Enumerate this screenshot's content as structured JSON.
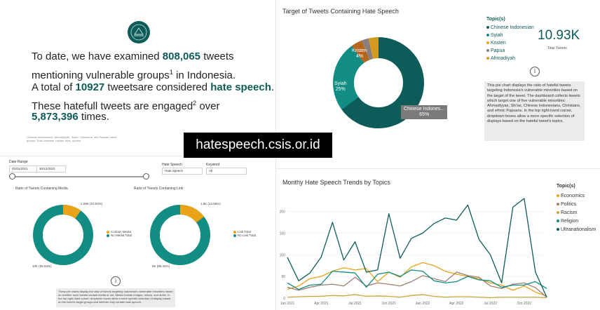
{
  "intro": {
    "line1_pre": "To date, we have examined ",
    "line1_num": "808,065",
    "line1_post": " tweets",
    "line2_pre": "mentioning vulnerable groups",
    "line2_sup": "1",
    "line2_post": " in Indonesia.",
    "line3_pre": "A total of ",
    "line3_num": "10927",
    "line3_mid": " tweets",
    "line3_mid2": "are considered ",
    "line3_em": "hate speech",
    "line3_post": ".",
    "line4_pre": "These hatefull tweets are engaged",
    "line4_sup": "2",
    "line4_post": " over",
    "line5_num": "5,873,396",
    "line5_post": "  times.",
    "footnote": "Chinese Indonesians, Ahmadiyyah, Syiah, Christians, and Papuan ethnic groups. Total retweets, replies, favs, quotes."
  },
  "banner": {
    "text": "hatespeech.csis.or.id"
  },
  "filters": {
    "date_label": "Date Range",
    "date_from": "01/01/2021",
    "date_to": "30/12/2022",
    "hs_label": "Hate Speech",
    "hs_value": "Hate Speech",
    "kw_label": "Keyword",
    "kw_value": "All"
  },
  "media_chart": {
    "title": "Ratio of Tweets Containing Media",
    "top_label": "1.09K (10.03%)",
    "bottom_label": "10K (89.94%)",
    "legend": [
      {
        "name": "Contain Media",
        "color": "#e8a317"
      },
      {
        "name": "No Media Total",
        "color": "#118d84"
      }
    ],
    "share": 0.1003
  },
  "link_chart": {
    "title": "Ratio of Tweets Containing Link",
    "top_label": "1.5K (14.56%)",
    "bottom_label": "9K (85.44%)",
    "legend": [
      {
        "name": "Link Total",
        "color": "#e8a317"
      },
      {
        "name": "No Link Total",
        "color": "#118d84"
      }
    ],
    "share": 0.1456
  },
  "bottom_note": "These pie charts display the ratio of tweets targeting Indonesia's vulnerable minorities based on whether such tweets contain media or not. Media include images, videos, and audio. In the top right-hand corner, dropdown boxes allow a more specific selection of display based on the tweet's target groups and whether they contain hate speech.",
  "info_glyph": "i",
  "target_chart": {
    "title": "Target of Tweets Containing Hate Speech",
    "slices": [
      {
        "name": "Chinese Indonesian",
        "label": "Chinese Indones...",
        "pct_label": "65%",
        "value": 65,
        "color": "#0e5c59"
      },
      {
        "name": "Syiah",
        "label": "Syiah",
        "pct_label": "25%",
        "value": 25,
        "color": "#118d84"
      },
      {
        "name": "Kristen",
        "label": "Kristen",
        "pct_label": "4%",
        "value": 4,
        "color": "#b5651d"
      },
      {
        "name": "Papua",
        "label": "",
        "pct_label": "",
        "value": 2.5,
        "color": "#8a7f7a"
      },
      {
        "name": "Ahmadiyah",
        "label": "",
        "pct_label": "",
        "value": 3.5,
        "color": "#d49a1e"
      }
    ]
  },
  "topics": {
    "title": "Topic(s)",
    "items": [
      "Chinese Indonesian",
      "Syiah",
      "Kristen",
      "Papua",
      "Ahmadiyah"
    ]
  },
  "kpi": {
    "value": "10.93K",
    "label": "Total Tweets"
  },
  "target_desc": "This pie chart displays the ratio of hateful tweets targeting Indonesia's vulnerable minorities based on the target of the tweet. The dashboard collects tweets which target one of five vulnerable minorities: Ahmadiyyas, Shi'as, Chinese Indonesians, Christians, and ethnic Papuans. In the top right-hand corner, dropdown boxes allow a more specific selection of displays based on the hateful tweet's topics.",
  "chart_data": {
    "type": "line",
    "title": "Monthy Hate Speech Trends by Topics",
    "x": [
      "Jan 2021",
      "Feb 2021",
      "Mar 2021",
      "Apr 2021",
      "May 2021",
      "Jun 2021",
      "Jul 2021",
      "Aug 2021",
      "Sep 2021",
      "Oct 2021",
      "Nov 2021",
      "Dec 2021",
      "Jan 2022",
      "Feb 2022",
      "Mar 2022",
      "Apr 2022",
      "May 2022",
      "Jun 2022",
      "Jul 2022",
      "Aug 2022",
      "Sep 2022",
      "Oct 2022",
      "Nov 2022",
      "Dec 2022"
    ],
    "x_ticks": [
      "Jan 2021",
      "Apr 2021",
      "Jul 2021",
      "Oct 2021",
      "Jan 2022",
      "Apr 2022",
      "Jul 2022",
      "Oct 2022"
    ],
    "y_ticks": [
      0,
      50,
      100,
      150,
      200
    ],
    "ylim": [
      0,
      230
    ],
    "legend_title": "Topic(s)",
    "series": [
      {
        "name": "Economics",
        "color": "#e8a317",
        "values": [
          20,
          28,
          45,
          50,
          62,
          70,
          65,
          68,
          38,
          60,
          48,
          72,
          82,
          75,
          62,
          55,
          50,
          45,
          35,
          30,
          18,
          28,
          14,
          4
        ]
      },
      {
        "name": "Politics",
        "color": "#9e7f76",
        "values": [
          25,
          18,
          25,
          30,
          32,
          28,
          48,
          28,
          35,
          32,
          28,
          38,
          52,
          45,
          38,
          60,
          52,
          48,
          28,
          22,
          32,
          35,
          24,
          2
        ]
      },
      {
        "name": "Racism",
        "color": "#c9a43a",
        "values": [
          2,
          3,
          4,
          4,
          6,
          5,
          8,
          4,
          5,
          4,
          2,
          6,
          8,
          4,
          2,
          3,
          3,
          2,
          1,
          2,
          2,
          2,
          2,
          1
        ]
      },
      {
        "name": "Religion",
        "color": "#118d84",
        "values": [
          35,
          20,
          30,
          32,
          62,
          60,
          58,
          25,
          55,
          60,
          50,
          65,
          62,
          40,
          35,
          38,
          50,
          42,
          40,
          25,
          30,
          30,
          38,
          22
        ]
      },
      {
        "name": "Ultranationalism",
        "color": "#0e5c59",
        "values": [
          94,
          40,
          58,
          95,
          175,
          88,
          130,
          60,
          65,
          195,
          92,
          138,
          150,
          172,
          185,
          180,
          215,
          135,
          100,
          35,
          210,
          230,
          60,
          2
        ]
      }
    ]
  }
}
